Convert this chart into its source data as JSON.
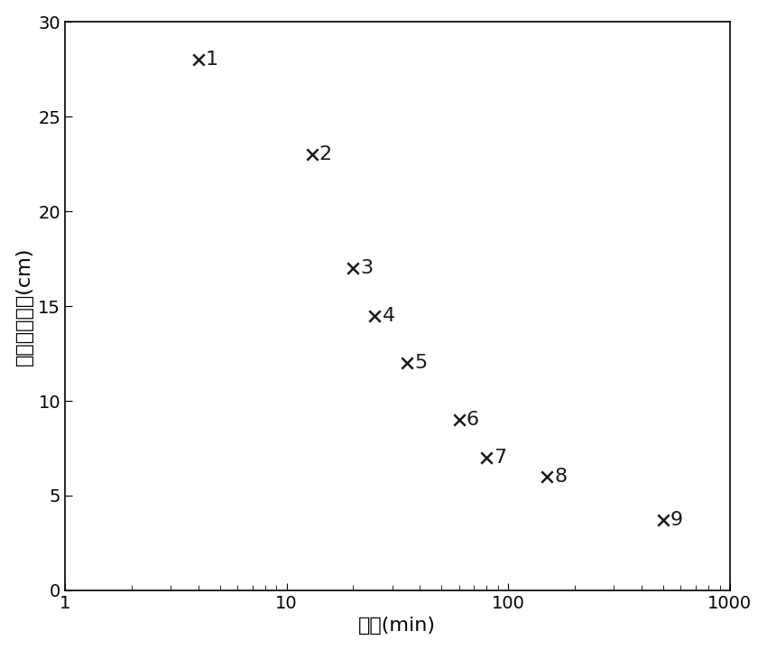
{
  "x_values": [
    4,
    13,
    20,
    25,
    35,
    60,
    80,
    150,
    500
  ],
  "y_values": [
    28,
    23,
    17,
    14.5,
    12,
    9,
    7,
    6,
    3.7
  ],
  "labels": [
    "1",
    "2",
    "3",
    "4",
    "5",
    "6",
    "7",
    "8",
    "9"
  ],
  "xlabel": "时间(min)",
  "ylabel": "水沙界面高度(cm)",
  "xlim": [
    1,
    1000
  ],
  "ylim": [
    0,
    30
  ],
  "yticks": [
    0,
    5,
    10,
    15,
    20,
    25,
    30
  ],
  "xticks": [
    1,
    10,
    100,
    1000
  ],
  "marker_color": "#1a1a1a",
  "marker_size": 80,
  "marker_linewidth": 1.8,
  "label_fontsize": 16,
  "tick_fontsize": 14,
  "background_color": "#ffffff"
}
